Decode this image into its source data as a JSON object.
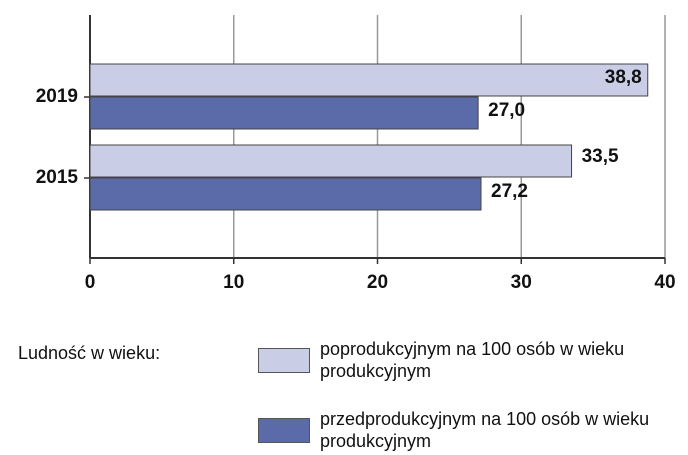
{
  "chart_data": {
    "type": "bar",
    "orientation": "horizontal",
    "categories": [
      "2019",
      "2015"
    ],
    "series": [
      {
        "name": "poprodukcyjnym na 100 osób w wieku produkcyjnym",
        "color": "#c9cde6",
        "values": [
          38.8,
          33.5
        ],
        "value_labels": [
          "38,8",
          "33,5"
        ]
      },
      {
        "name": "przedprodukcyjnym na 100 osób w wieku produkcyjnym",
        "color": "#5b6aa9",
        "values": [
          27.0,
          27.2
        ],
        "value_labels": [
          "27,0",
          "27,2"
        ]
      }
    ],
    "xlim": [
      0,
      40
    ],
    "xticks": [
      0,
      10,
      20,
      30,
      40
    ],
    "grid": true,
    "legend_title": "Ludność w wieku:"
  }
}
